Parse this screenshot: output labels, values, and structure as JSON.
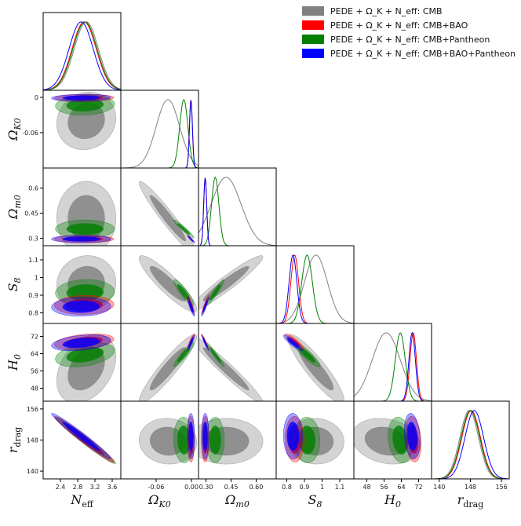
{
  "chart_data": {
    "type": "triangle-corner",
    "title": "",
    "parameters": [
      {
        "key": "neff",
        "label": "N_eff",
        "range": [
          2.0,
          3.8
        ],
        "ticks": [
          "2.4",
          "2.8",
          "3.2",
          "3.6"
        ],
        "tick_values": [
          2.4,
          2.8,
          3.2,
          3.6
        ]
      },
      {
        "key": "ok",
        "label": "Ω_K0",
        "range": [
          -0.12,
          0.012
        ],
        "ticks": [
          "-0.06",
          "0.00"
        ],
        "tick_values": [
          -0.06,
          0.0
        ]
      },
      {
        "key": "om",
        "label": "Ω_m0",
        "range": [
          0.255,
          0.72
        ],
        "ticks": [
          "0.30",
          "0.45",
          "0.60"
        ],
        "tick_values": [
          0.3,
          0.45,
          0.6
        ]
      },
      {
        "key": "s8",
        "label": "S_8",
        "range": [
          0.74,
          1.18
        ],
        "ticks": [
          "0.8",
          "0.9",
          "1",
          "1.1"
        ],
        "tick_values": [
          0.8,
          0.9,
          1.0,
          1.1
        ]
      },
      {
        "key": "h0",
        "label": "H_0",
        "range": [
          42,
          78
        ],
        "ticks": [
          "48",
          "56",
          "64",
          "72"
        ],
        "tick_values": [
          48,
          56,
          64,
          72
        ]
      },
      {
        "key": "rd",
        "label": "r_drag",
        "range": [
          138,
          158
        ],
        "ticks": [
          "140",
          "148",
          "156"
        ],
        "tick_values": [
          140,
          148,
          156
        ]
      }
    ],
    "y_tick_labels": {
      "ok": [
        "0",
        "-0.06"
      ],
      "om": [
        "0.6",
        "0.45",
        "0.3"
      ],
      "s8": [
        "1.1",
        "1",
        "0.9",
        "0.8"
      ],
      "h0": [
        "72",
        "64",
        "56",
        "48"
      ],
      "rd": [
        "156",
        "148",
        "140"
      ]
    },
    "series": [
      {
        "name": "PEDE + Ω_K + N_eff: CMB",
        "color": "#808080",
        "mean": {
          "neff": 3.0,
          "ok": -0.04,
          "om": 0.42,
          "s8": 0.965,
          "h0": 57.0,
          "rd": 147.7
        },
        "sd": {
          "neff": 0.28,
          "ok": 0.02,
          "om": 0.09,
          "s8": 0.065,
          "h0": 6.5,
          "rd": 2.4
        }
      },
      {
        "name": "PEDE + Ω_K + N_eff: CMB+BAO",
        "color": "#ff0000",
        "mean": {
          "neff": 2.95,
          "ok": -0.001,
          "om": 0.295,
          "s8": 0.845,
          "h0": 69.5,
          "rd": 148.2
        },
        "sd": {
          "neff": 0.28,
          "ok": 0.0025,
          "om": 0.009,
          "s8": 0.022,
          "h0": 1.5,
          "rd": 2.4
        }
      },
      {
        "name": "PEDE + Ω_K + N_eff: CMB+Pantheon",
        "color": "#008000",
        "mean": {
          "neff": 2.97,
          "ok": -0.013,
          "om": 0.355,
          "s8": 0.915,
          "h0": 63.5,
          "rd": 148.0
        },
        "sd": {
          "neff": 0.28,
          "ok": 0.007,
          "om": 0.022,
          "s8": 0.03,
          "h0": 2.3,
          "rd": 2.4
        }
      },
      {
        "name": "PEDE + Ω_K + N_eff: CMB+BAO+Pantheon",
        "color": "#0000ff",
        "mean": {
          "neff": 2.88,
          "ok": -0.0008,
          "om": 0.295,
          "s8": 0.835,
          "h0": 69.0,
          "rd": 149.0
        },
        "sd": {
          "neff": 0.28,
          "ok": 0.0025,
          "om": 0.009,
          "s8": 0.022,
          "h0": 1.5,
          "rd": 2.4
        }
      }
    ],
    "correlations": {
      "ok": {
        "neff": 0.1
      },
      "om": {
        "neff": 0.0,
        "ok": -0.96
      },
      "s8": {
        "neff": 0.05,
        "ok": -0.9,
        "om": 0.95
      },
      "h0": {
        "neff": 0.35,
        "ok": 0.93,
        "om": -0.97,
        "s8": -0.9
      },
      "rd": {
        "neff": -0.98,
        "ok": -0.05,
        "om": 0.0,
        "s8": -0.03,
        "h0": -0.2
      }
    },
    "contour_levels": [
      "68%",
      "95%"
    ],
    "legend_location": "top-right"
  }
}
